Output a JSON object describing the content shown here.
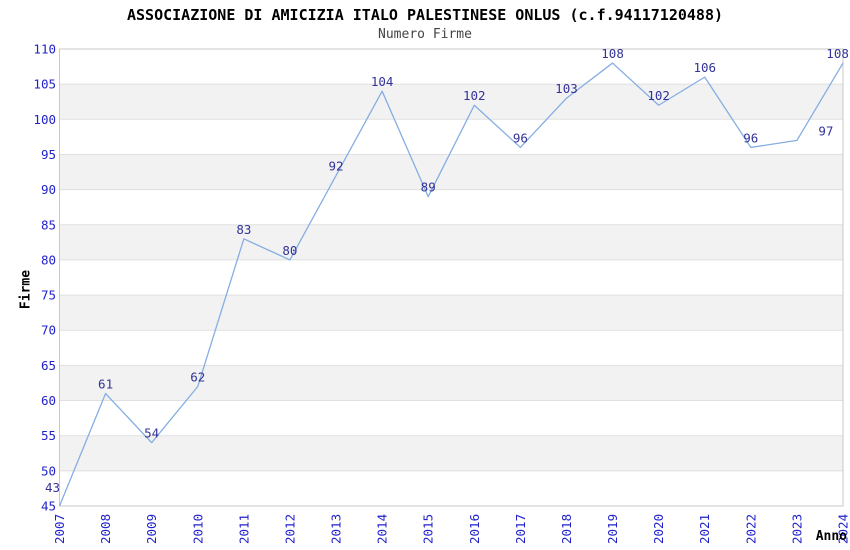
{
  "chart_data": {
    "type": "line",
    "title": "ASSOCIAZIONE DI AMICIZIA ITALO PALESTINESE ONLUS (c.f.94117120488)",
    "subtitle": "Numero Firme",
    "xlabel": "Anno",
    "ylabel": "Firme",
    "categories": [
      "2007",
      "2008",
      "2009",
      "2010",
      "2011",
      "2012",
      "2013",
      "2014",
      "2015",
      "2016",
      "2017",
      "2018",
      "2019",
      "2020",
      "2021",
      "2022",
      "2023",
      "2024"
    ],
    "values": [
      43,
      61,
      54,
      62,
      83,
      80,
      92,
      104,
      89,
      102,
      96,
      103,
      108,
      102,
      106,
      96,
      97,
      108
    ],
    "point_labels": [
      "43",
      "61",
      "54",
      "62",
      "83",
      "80",
      "92",
      "104",
      "89",
      "102",
      "96",
      "103",
      "108",
      "102",
      "106",
      "96",
      "97",
      "108"
    ],
    "ylim": [
      45,
      110
    ],
    "yticks": [
      45,
      50,
      55,
      60,
      65,
      70,
      75,
      80,
      85,
      90,
      95,
      100,
      105,
      110
    ],
    "grid": "horizontal gridlines with alternating shaded bands every 5 units",
    "legend": "none",
    "colors": {
      "line": "#85aee3",
      "tick_label": "#2222cc",
      "point_label": "#333399",
      "band_fill": "#f2f2f2",
      "gridline": "#e0e0e0",
      "plot_border": "#c8c8c8",
      "title": "#000000",
      "subtitle": "#444444",
      "axis_title": "#000000"
    }
  }
}
